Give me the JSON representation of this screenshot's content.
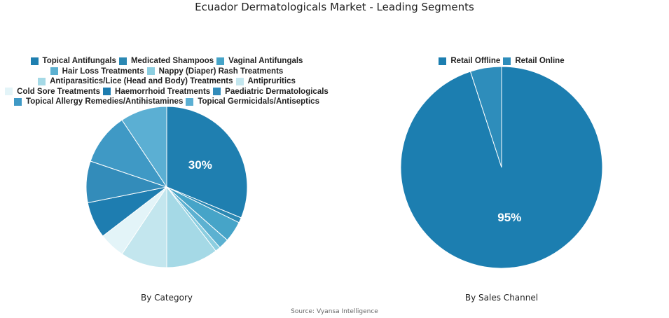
{
  "title": "Ecuador Dermatologicals Market - Leading Segments",
  "source": "Source: Vyansa Intelligence",
  "chart_data": [
    {
      "type": "pie",
      "xlabel": "By Category",
      "legend_rows": [
        [
          0,
          1,
          2
        ],
        [
          3,
          4
        ],
        [
          5,
          6
        ],
        [
          7,
          8,
          9
        ],
        [
          10,
          11
        ]
      ],
      "slices": [
        {
          "label": "Topical Antifungals",
          "value": 30,
          "color": "#1f7fb0",
          "show_label": "30%"
        },
        {
          "label": "Medicated Shampoos",
          "value": 1,
          "color": "#2b88b3",
          "show_label": ""
        },
        {
          "label": "Vaginal Antifungals",
          "value": 4,
          "color": "#46a4c8",
          "show_label": ""
        },
        {
          "label": "Hair Loss Treatments",
          "value": 2,
          "color": "#5cb1d1",
          "show_label": ""
        },
        {
          "label": "Nappy (Diaper) Rash Treatments",
          "value": 1,
          "color": "#8ccee0",
          "show_label": ""
        },
        {
          "label": "Antiparasitics/Lice (Head and Body) Treatments",
          "value": 10,
          "color": "#a5d9e6",
          "show_label": ""
        },
        {
          "label": "Antipruritics",
          "value": 9,
          "color": "#c3e6ee",
          "show_label": ""
        },
        {
          "label": "Cold Sore Treatments",
          "value": 5,
          "color": "#e3f4f8",
          "show_label": ""
        },
        {
          "label": "Haemorrhoid Treatments",
          "value": 7,
          "color": "#1e7db0",
          "show_label": ""
        },
        {
          "label": "Paediatric Dermatologicals",
          "value": 8,
          "color": "#338cba",
          "show_label": ""
        },
        {
          "label": "Topical Allergy Remedies/Antihistamines",
          "value": 10,
          "color": "#3f99c5",
          "show_label": ""
        },
        {
          "label": "Topical Germicidals/Antiseptics",
          "value": 9,
          "color": "#5bafd3",
          "show_label": ""
        }
      ]
    },
    {
      "type": "pie",
      "xlabel": "By Sales Channel",
      "legend_rows": [
        [
          0,
          1
        ]
      ],
      "slices": [
        {
          "label": "Retail Offline",
          "value": 95,
          "color": "#1c7eb0",
          "show_label": "95%"
        },
        {
          "label": "Retail Online",
          "value": 5,
          "color": "#2e8dbb",
          "show_label": ""
        }
      ]
    }
  ]
}
